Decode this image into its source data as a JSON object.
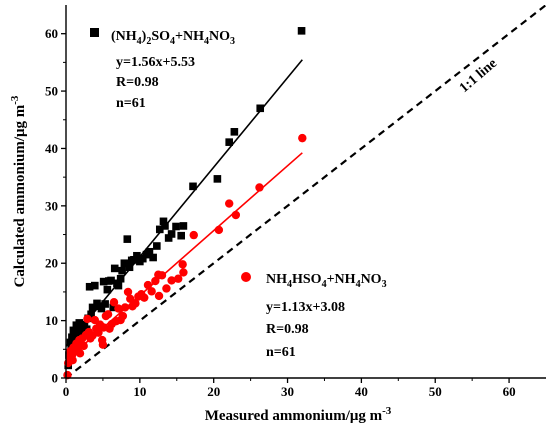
{
  "chart_data": {
    "type": "scatter",
    "xlabel": "Measured ammonium/μg m",
    "xlabel_sup": "-3",
    "ylabel": "Calculated ammonium/μg m",
    "ylabel_sup": "-3",
    "xlim": [
      0,
      65
    ],
    "ylim": [
      0,
      65
    ],
    "xticks": [
      0,
      10,
      20,
      30,
      40,
      50,
      60
    ],
    "yticks": [
      0,
      10,
      20,
      30,
      40,
      50,
      60
    ],
    "grid": false,
    "one_to_one_label": "1:1 line",
    "series": [
      {
        "name_parts": [
          {
            "t": "(NH",
            "s": false
          },
          {
            "t": "4",
            "s": true
          },
          {
            "t": ")",
            "s": false
          },
          {
            "t": "2",
            "s": true
          },
          {
            "t": "SO",
            "s": false
          },
          {
            "t": "4",
            "s": true
          },
          {
            "t": "+NH",
            "s": false
          },
          {
            "t": "4",
            "s": true
          },
          {
            "t": "NO",
            "s": false
          },
          {
            "t": "3",
            "s": true
          }
        ],
        "marker": "square",
        "color": "#000000",
        "fit": {
          "slope": 1.56,
          "intercept": 5.53,
          "x_range": [
            0,
            32
          ]
        },
        "equation": "y=1.56x+5.53",
        "r_text": "R=0.98",
        "n_text": "n=61",
        "points": [
          [
            0.3,
            2.2
          ],
          [
            0.4,
            4.0
          ],
          [
            0.6,
            6.2
          ],
          [
            0.8,
            7.1
          ],
          [
            1.0,
            8.3
          ],
          [
            1.2,
            7.6
          ],
          [
            1.4,
            9.2
          ],
          [
            1.6,
            8.0
          ],
          [
            1.8,
            9.6
          ],
          [
            2.0,
            8.7
          ],
          [
            2.2,
            7.7
          ],
          [
            2.5,
            9.3
          ],
          [
            2.8,
            8.5
          ],
          [
            3.0,
            10.4
          ],
          [
            3.2,
            15.9
          ],
          [
            3.4,
            11.1
          ],
          [
            3.6,
            12.3
          ],
          [
            3.9,
            16.1
          ],
          [
            4.2,
            13.0
          ],
          [
            4.5,
            12.5
          ],
          [
            4.8,
            12.1
          ],
          [
            5.1,
            16.8
          ],
          [
            5.3,
            12.9
          ],
          [
            5.6,
            15.4
          ],
          [
            5.8,
            16.9
          ],
          [
            6.1,
            17.0
          ],
          [
            6.4,
            12.3
          ],
          [
            6.6,
            19.1
          ],
          [
            6.9,
            16.5
          ],
          [
            7.1,
            16.1
          ],
          [
            7.4,
            17.3
          ],
          [
            7.6,
            18.7
          ],
          [
            7.9,
            20.0
          ],
          [
            8.3,
            24.2
          ],
          [
            8.6,
            19.3
          ],
          [
            8.9,
            20.5
          ],
          [
            9.2,
            20.6
          ],
          [
            9.6,
            21.3
          ],
          [
            10.0,
            20.3
          ],
          [
            10.4,
            20.8
          ],
          [
            10.9,
            21.5
          ],
          [
            11.3,
            22.0
          ],
          [
            11.8,
            21.0
          ],
          [
            12.3,
            23.0
          ],
          [
            12.7,
            25.9
          ],
          [
            13.2,
            27.3
          ],
          [
            13.4,
            26.5
          ],
          [
            13.9,
            24.4
          ],
          [
            14.3,
            25.1
          ],
          [
            14.9,
            26.4
          ],
          [
            15.6,
            24.8
          ],
          [
            15.9,
            26.5
          ],
          [
            17.2,
            33.4
          ],
          [
            20.5,
            34.7
          ],
          [
            22.1,
            41.1
          ],
          [
            22.8,
            42.9
          ],
          [
            26.3,
            47.0
          ],
          [
            31.9,
            60.5
          ],
          [
            0.7,
            5.4
          ],
          [
            1.5,
            6.8
          ],
          [
            2.3,
            8.2
          ]
        ]
      },
      {
        "name_parts": [
          {
            "t": "NH",
            "s": false
          },
          {
            "t": "4",
            "s": true
          },
          {
            "t": "HSO",
            "s": false
          },
          {
            "t": "4",
            "s": true
          },
          {
            "t": "+NH",
            "s": false
          },
          {
            "t": "4",
            "s": true
          },
          {
            "t": "NO",
            "s": false
          },
          {
            "t": "3",
            "s": true
          }
        ],
        "marker": "circle",
        "color": "#ff0000",
        "fit": {
          "slope": 1.13,
          "intercept": 3.08,
          "x_range": [
            0,
            32
          ]
        },
        "equation": "y=1.13x+3.08",
        "r_text": "R=0.98",
        "n_text": "n=61",
        "points": [
          [
            0.2,
            0.5
          ],
          [
            0.3,
            2.6
          ],
          [
            0.5,
            3.8
          ],
          [
            0.6,
            4.7
          ],
          [
            0.8,
            3.9
          ],
          [
            1.0,
            5.3
          ],
          [
            1.2,
            4.6
          ],
          [
            1.4,
            6.0
          ],
          [
            1.6,
            5.2
          ],
          [
            1.8,
            6.6
          ],
          [
            2.0,
            5.8
          ],
          [
            2.2,
            6.9
          ],
          [
            2.4,
            5.6
          ],
          [
            2.7,
            7.5
          ],
          [
            2.9,
            10.3
          ],
          [
            3.1,
            8.0
          ],
          [
            3.3,
            6.9
          ],
          [
            3.6,
            7.4
          ],
          [
            3.9,
            10.1
          ],
          [
            4.1,
            8.6
          ],
          [
            4.4,
            7.9
          ],
          [
            4.6,
            9.3
          ],
          [
            4.9,
            6.6
          ],
          [
            5.1,
            8.8
          ],
          [
            5.4,
            10.8
          ],
          [
            5.7,
            11.1
          ],
          [
            5.9,
            8.6
          ],
          [
            6.2,
            9.4
          ],
          [
            6.5,
            13.2
          ],
          [
            6.8,
            9.9
          ],
          [
            7.1,
            12.1
          ],
          [
            7.4,
            10.1
          ],
          [
            7.7,
            10.8
          ],
          [
            8.0,
            12.3
          ],
          [
            8.4,
            15.0
          ],
          [
            8.7,
            13.8
          ],
          [
            9.0,
            12.5
          ],
          [
            9.4,
            13.0
          ],
          [
            9.8,
            14.2
          ],
          [
            10.2,
            14.6
          ],
          [
            10.6,
            14.0
          ],
          [
            11.1,
            16.2
          ],
          [
            11.6,
            15.1
          ],
          [
            12.1,
            16.9
          ],
          [
            12.5,
            18.0
          ],
          [
            13.0,
            17.9
          ],
          [
            13.6,
            15.6
          ],
          [
            14.3,
            17.0
          ],
          [
            15.2,
            17.3
          ],
          [
            15.8,
            19.8
          ],
          [
            17.3,
            24.9
          ],
          [
            20.7,
            25.8
          ],
          [
            22.1,
            30.4
          ],
          [
            23.0,
            28.4
          ],
          [
            26.2,
            33.2
          ],
          [
            32.0,
            41.8
          ],
          [
            12.6,
            14.3
          ],
          [
            5.0,
            5.8
          ],
          [
            0.9,
            3.1
          ],
          [
            1.9,
            4.3
          ],
          [
            15.9,
            18.4
          ]
        ]
      }
    ]
  }
}
